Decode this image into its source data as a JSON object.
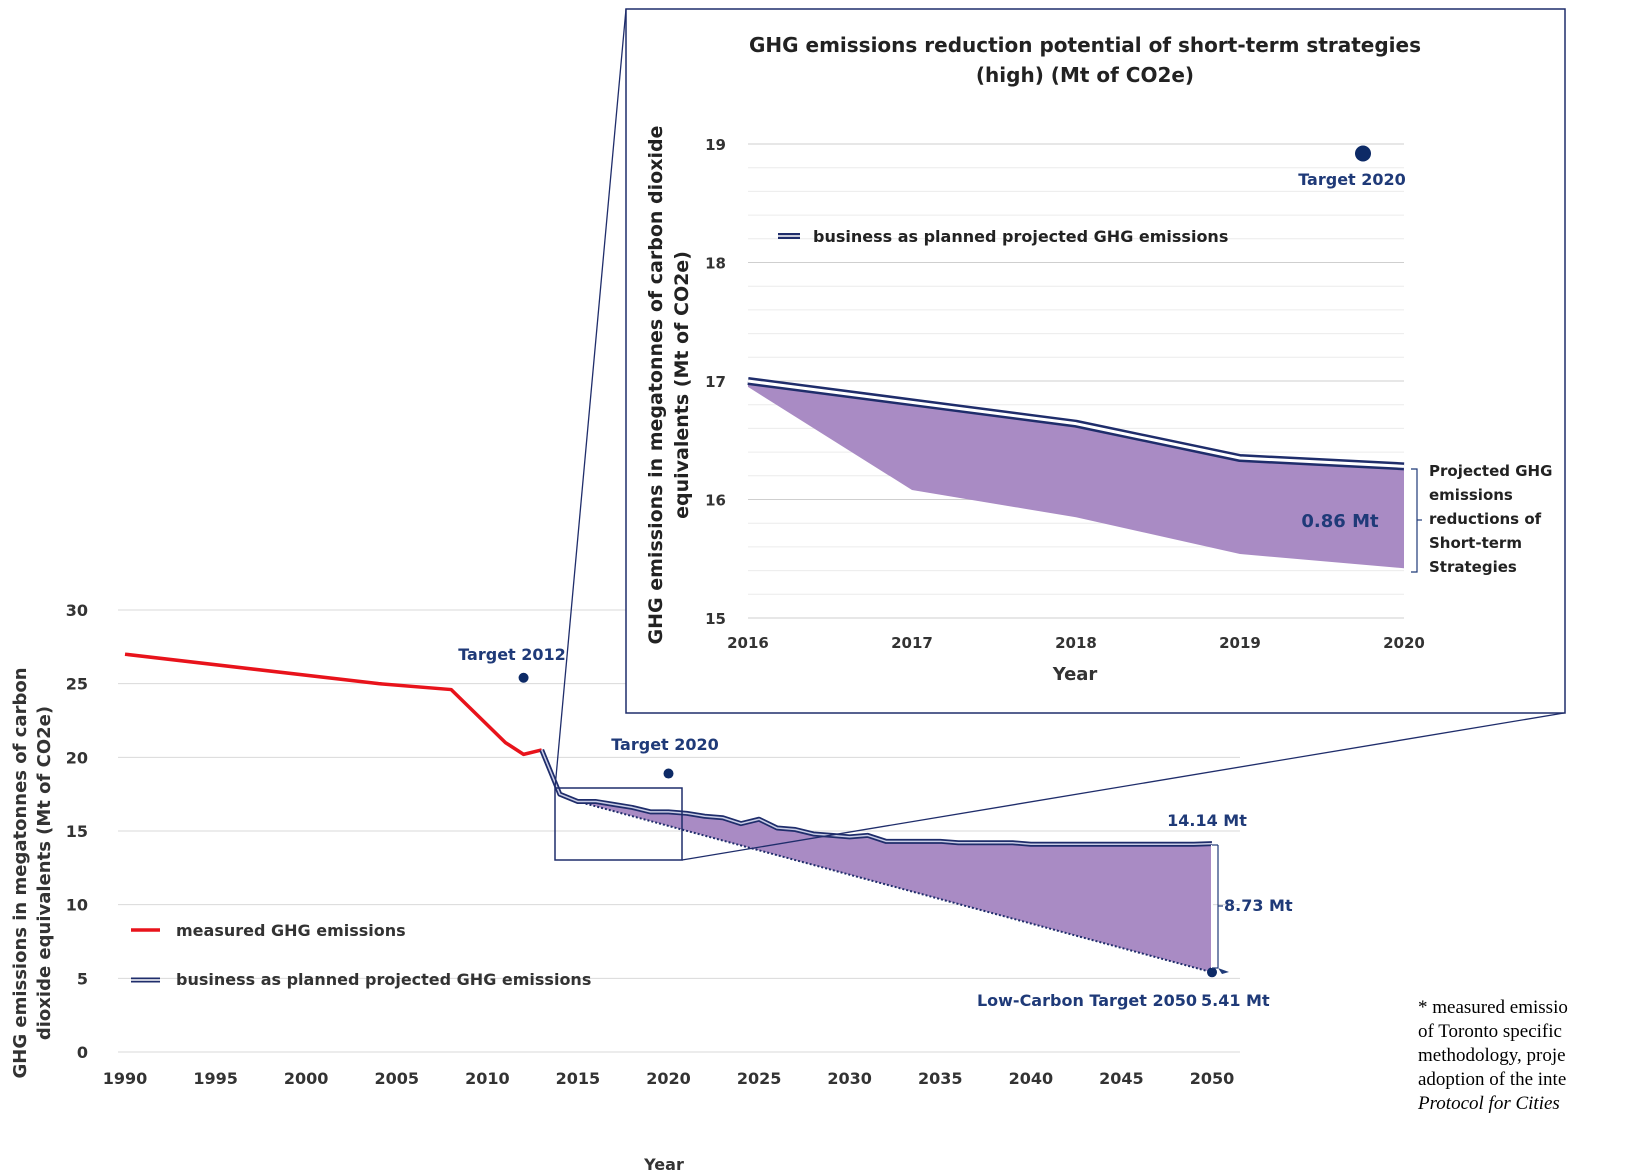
{
  "main_chart": {
    "xlabel": "Year",
    "ylabel_line1": "GHG emissions in megatonnes of carbon",
    "ylabel_line2": "dioxide equivalents (Mt of CO2e)",
    "x_ticks": [
      "1990",
      "1995",
      "2000",
      "2005",
      "2010",
      "2015",
      "2020",
      "2025",
      "2030",
      "2035",
      "2040",
      "2045",
      "2050"
    ],
    "y_ticks": [
      "0",
      "5",
      "10",
      "15",
      "20",
      "25",
      "30"
    ],
    "legend": {
      "measured": "measured GHG emissions",
      "bap": "business as planned projected GHG emissions"
    },
    "annotations": {
      "target_2012": "Target 2012",
      "target_2020": "Target 2020",
      "target_2050": "Low-Carbon Target 2050",
      "value_2050": "5.41 Mt",
      "value_bap_2050": "14.14 Mt",
      "gap_2050": "8.73 Mt"
    }
  },
  "inset_chart": {
    "title_line1": "GHG emissions reduction potential of short-term strategies",
    "title_line2": "(high) (Mt of CO2e)",
    "xlabel": "Year",
    "ylabel_line1": "GHG emissions in megatonnes of carbon dioxide",
    "ylabel_line2": "equivalents (Mt of CO2e)",
    "x_ticks": [
      "2016",
      "2017",
      "2018",
      "2019",
      "2020"
    ],
    "y_ticks": [
      "15",
      "16",
      "17",
      "18",
      "19"
    ],
    "legend": "business as planned projected GHG emissions",
    "target_label": "Target 2020",
    "reduction_value": "0.86 Mt",
    "bracket_label": [
      "Projected GHG",
      "emissions",
      "reductions of",
      "Short-term",
      "Strategies"
    ]
  },
  "footnote": [
    "* measured emissio",
    "of Toronto specific",
    "methodology, proje",
    "adoption of the inte",
    "Protocol for Cities"
  ],
  "colors": {
    "measured": "#e8131b",
    "bap": "#1f2d6b",
    "target": "#0d2a66",
    "fill": "#a98bc4",
    "label": "#1f3a78",
    "axis_text": "#333333",
    "grid": "#d9d9d9"
  },
  "chart_data": [
    {
      "type": "line",
      "title": "",
      "xlabel": "Year",
      "ylabel": "GHG emissions in megatonnes of carbon dioxide equivalents (Mt of CO2e)",
      "xlim": [
        1990,
        2050
      ],
      "ylim": [
        0,
        30
      ],
      "grid": "horizontal",
      "legend_position": "bottom-left",
      "series": [
        {
          "name": "measured GHG emissions",
          "x": [
            1990,
            2004,
            2008,
            2011,
            2012,
            2013
          ],
          "y": [
            27.0,
            25.0,
            24.6,
            21.0,
            20.2,
            20.5
          ]
        },
        {
          "name": "business as planned projected GHG emissions",
          "x": [
            2013,
            2014,
            2015,
            2016,
            2017,
            2018,
            2019,
            2020,
            2021,
            2022,
            2023,
            2024,
            2025,
            2026,
            2027,
            2028,
            2029,
            2030,
            2031,
            2032,
            2033,
            2034,
            2035,
            2036,
            2037,
            2038,
            2039,
            2040,
            2041,
            2042,
            2043,
            2044,
            2045,
            2046,
            2047,
            2048,
            2049,
            2050
          ],
          "y": [
            20.5,
            17.5,
            17.0,
            17.0,
            16.8,
            16.6,
            16.3,
            16.3,
            16.2,
            16.0,
            15.9,
            15.5,
            15.8,
            15.2,
            15.1,
            14.8,
            14.7,
            14.6,
            14.7,
            14.3,
            14.3,
            14.3,
            14.3,
            14.2,
            14.2,
            14.2,
            14.2,
            14.1,
            14.1,
            14.1,
            14.1,
            14.1,
            14.1,
            14.1,
            14.1,
            14.1,
            14.1,
            14.14
          ]
        },
        {
          "name": "",
          "style": "dotted",
          "x": [
            2015,
            2050
          ],
          "y": [
            17.0,
            5.41
          ]
        }
      ],
      "shaded_area": {
        "between": [
          "business as planned projected GHG emissions",
          "dotted"
        ],
        "x_range": [
          2015,
          2050
        ]
      },
      "points": [
        {
          "label": "Target 2012",
          "x": 2012,
          "y": 25.4
        },
        {
          "label": "Target 2020",
          "x": 2020,
          "y": 18.9
        },
        {
          "label": "Low-Carbon Target 2050",
          "x": 2050,
          "y": 5.41
        }
      ],
      "annotations": [
        {
          "text": "14.14 Mt",
          "x": 2050,
          "y": 14.14
        },
        {
          "text": "8.73 Mt",
          "x": 2050,
          "y": 10
        },
        {
          "text": "5.41 Mt",
          "x": 2050,
          "y": 5.41
        }
      ]
    },
    {
      "type": "area",
      "title": "GHG emissions reduction potential of short-term strategies (high) (Mt of CO2e)",
      "xlabel": "Year",
      "ylabel": "GHG emissions in megatonnes of carbon dioxide equivalents (Mt of CO2e)",
      "xlim": [
        2016,
        2020
      ],
      "ylim": [
        15,
        19
      ],
      "grid": "horizontal",
      "legend_position": "top-left",
      "series": [
        {
          "name": "business as planned projected GHG emissions",
          "x": [
            2016,
            2017,
            2018,
            2019,
            2020
          ],
          "y": [
            17.0,
            16.82,
            16.64,
            16.35,
            16.28
          ]
        },
        {
          "name": "",
          "x": [
            2016,
            2017,
            2018,
            2019,
            2020
          ],
          "y": [
            16.95,
            16.08,
            15.85,
            15.54,
            15.42
          ]
        }
      ],
      "points": [
        {
          "label": "Target 2020",
          "x": 2019.75,
          "y": 18.92
        }
      ],
      "annotations": [
        {
          "text": "0.86 Mt",
          "x": 2020,
          "y": 15.85
        },
        {
          "text": "Projected GHG emissions reductions of Short-term Strategies",
          "x": 2020,
          "y": 15.85
        }
      ]
    }
  ]
}
